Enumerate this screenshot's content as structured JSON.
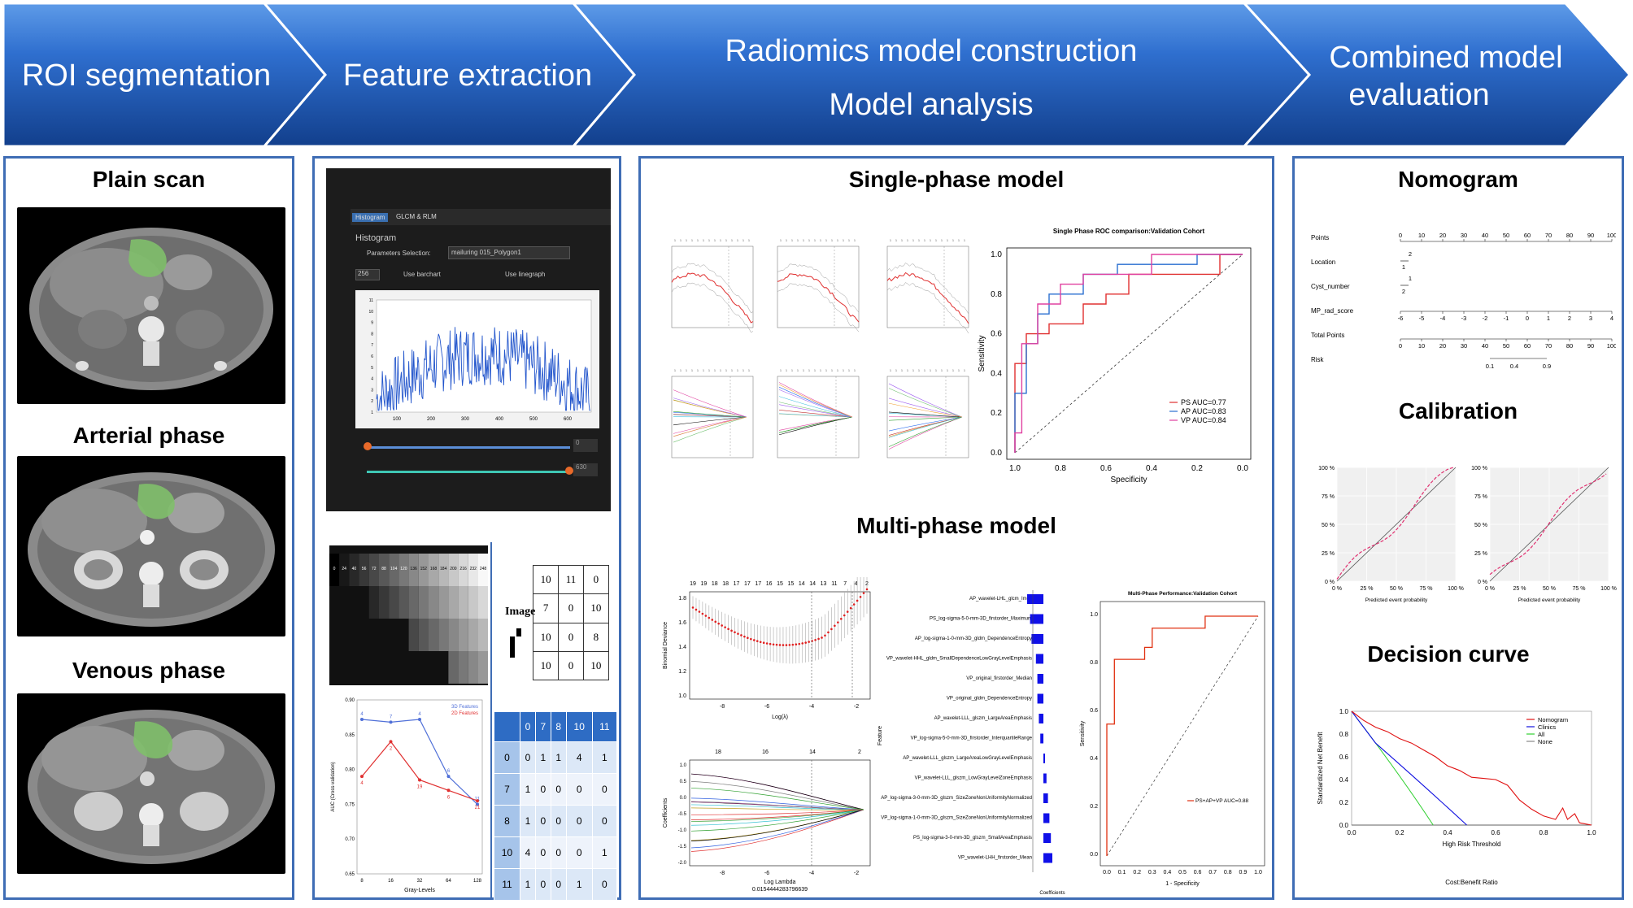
{
  "steps": [
    {
      "label": "ROI segmentation"
    },
    {
      "label": "Feature  extraction"
    },
    {
      "label_line1": "Radiomics model construction",
      "label_line2": "Model analysis"
    },
    {
      "label_line1": "Combined model",
      "label_line2": "evaluation"
    }
  ],
  "colors": {
    "banner_dark": "#1a4fa0",
    "banner_light": "#3a7ad8",
    "panel_border": "#3f6db5",
    "roi_green": "#7fbf6a"
  },
  "panel1": {
    "titles": [
      "Plain scan",
      "Arterial phase",
      "Venous phase"
    ]
  },
  "panel2": {
    "software": {
      "tab1": "Histogram",
      "tab2": "GLCM & RLM",
      "section": "Histogram",
      "param_label": "Parameters Selection:",
      "param_value": "mailuring 015_Polygon1",
      "bins": "256",
      "opt1": "Use barchart",
      "opt2": "Use linegraph",
      "yticks": [
        "11",
        "10",
        "9",
        "8",
        "7",
        "6",
        "5",
        "4",
        "3",
        "2",
        "1"
      ],
      "xticks": [
        "100",
        "200",
        "300",
        "400",
        "500",
        "600"
      ],
      "slider_end1": "0",
      "slider_end2": "630"
    },
    "gray_levels": [
      "0",
      "24",
      "40",
      "56",
      "72",
      "88",
      "104",
      "120",
      "136",
      "152",
      "168",
      "184",
      "200",
      "216",
      "232",
      "248"
    ],
    "image_label": "Image",
    "matrix": [
      [
        "10",
        "11",
        "0"
      ],
      [
        "7",
        "0",
        "10"
      ],
      [
        "10",
        "0",
        "8"
      ],
      [
        "10",
        "0",
        "10"
      ]
    ],
    "glcm_header": [
      "0",
      "7",
      "8",
      "10",
      "11"
    ],
    "glcm_rows": [
      [
        "0",
        "0",
        "1",
        "1",
        "4",
        "1"
      ],
      [
        "7",
        "1",
        "0",
        "0",
        "0",
        "0"
      ],
      [
        "8",
        "1",
        "0",
        "0",
        "0",
        "0"
      ],
      [
        "10",
        "4",
        "0",
        "0",
        "0",
        "1"
      ],
      [
        "11",
        "1",
        "0",
        "0",
        "1",
        "0"
      ]
    ],
    "linechart": {
      "legend": [
        "3D Features",
        "2D Features"
      ],
      "xlabel": "Gray-Levels",
      "ylabel": "AUC (Cross-validation)",
      "xticks": [
        "8",
        "16",
        "32",
        "64",
        "128"
      ],
      "yticks": [
        "0.90",
        "0.85",
        "0.80",
        "0.75",
        "0.70",
        "0.65"
      ],
      "labels_3d": [
        "4",
        "7",
        "4",
        "6",
        "21"
      ],
      "labels_2d": [
        "4",
        "2",
        "19",
        "6",
        "21"
      ]
    }
  },
  "panel3": {
    "title_single": "Single-phase model",
    "title_multi": "Multi-phase model",
    "roc_single": {
      "title": "Single Phase ROC comparison:Validation Cohort",
      "xlabel": "Specificity",
      "ylabel": "Sensitivity",
      "xticks": [
        "1.0",
        "0.8",
        "0.6",
        "0.4",
        "0.2",
        "0.0"
      ],
      "yticks": [
        "1.0",
        "0.8",
        "0.6",
        "0.4",
        "0.2",
        "0.0"
      ],
      "legend": [
        "PS AUC=0.77",
        "AP AUC=0.83",
        "VP AUC=0.84"
      ]
    },
    "lasso_multi": {
      "ylabel": "Binomial Deviance",
      "xlabel": "Log(λ)",
      "top_ticks": [
        "19",
        "19",
        "18",
        "18",
        "17",
        "17",
        "17",
        "16",
        "15",
        "15",
        "14",
        "14",
        "13",
        "11",
        "7",
        "4",
        "2"
      ],
      "xticks": [
        "-8",
        "-6",
        "-4",
        "-2"
      ],
      "yticks": [
        "1.8",
        "1.6",
        "1.4",
        "1.2",
        "1.0"
      ]
    },
    "coef_multi": {
      "ylabel": "Coefficients",
      "xlabel": "Log Lambda",
      "sub": "0.0154444283796639",
      "top_ticks": [
        "18",
        "16",
        "14",
        "2"
      ],
      "xticks": [
        "-8",
        "-6",
        "-4",
        "-2"
      ],
      "yticks": [
        "1.0",
        "0.5",
        "0.0",
        "-0.5",
        "-1.0",
        "-1.5",
        "-2.0"
      ]
    },
    "features": [
      "AP_wavelet-LHL_glcm_Imc1",
      "PS_log-sigma-5-0-mm-3D_firstorder_Maximum",
      "AP_log-sigma-1-0-mm-3D_gldm_DependenceEntropy",
      "VP_wavelet-HHL_gldm_SmallDependenceLowGrayLevelEmphasis",
      "VP_original_firstorder_Median",
      "VP_original_gldm_DependenceEntropy",
      "AP_wavelet-LLL_glszm_LargeAreaEmphasis",
      "VP_log-sigma-5-0-mm-3D_firstorder_InterquartileRange",
      "AP_wavelet-LLL_glszm_LargeAreaLowGrayLevelEmphasis",
      "VP_wavelet-LLL_glszm_LowGrayLevelZoneEmphasis",
      "AP_log-sigma-3-0-mm-3D_glszm_SizeZoneNonUniformityNormalized",
      "VP_log-sigma-1-0-mm-3D_glszm_SizeZoneNonUniformityNormalized",
      "PS_log-sigma-3-0-mm-3D_glszm_SmallAreaEmphasis",
      "VP_wavelet-LHH_firstorder_Mean"
    ],
    "feature_ylabel": "Feature",
    "feature_xlabel": "Coefficients",
    "feature_values": [
      -0.5,
      -0.4,
      -0.35,
      -0.2,
      -0.15,
      -0.15,
      -0.1,
      -0.05,
      0.0,
      0.05,
      0.1,
      0.15,
      0.2,
      0.25
    ],
    "roc_multi": {
      "title": "Multi-Phase Performance:Validation Cohort",
      "xlabel": "1 - Specificity",
      "ylabel": "Sensitivity",
      "xticks": [
        "0.0",
        "0.1",
        "0.2",
        "0.3",
        "0.4",
        "0.5",
        "0.6",
        "0.7",
        "0.8",
        "0.9",
        "1.0"
      ],
      "yticks": [
        "1.0",
        "0.8",
        "0.6",
        "0.4",
        "0.2",
        "0.0"
      ],
      "legend": "PS+AP+VP AUC=0.88"
    }
  },
  "panel4": {
    "title_nomogram": "Nomogram",
    "title_calibration": "Calibration",
    "title_decision": "Decision curve",
    "nomogram": {
      "rows": [
        "Points",
        "Location",
        "Cyst_number",
        "MP_rad_score",
        "Total Points",
        "Risk"
      ],
      "points_ticks": [
        "0",
        "10",
        "20",
        "30",
        "40",
        "50",
        "60",
        "70",
        "80",
        "90",
        "100"
      ],
      "score_ticks": [
        "-6",
        "-5",
        "-4",
        "-3",
        "-2",
        "-1",
        "0",
        "1",
        "2",
        "3",
        "4"
      ],
      "total_ticks": [
        "0",
        "10",
        "20",
        "30",
        "40",
        "50",
        "60",
        "70",
        "80",
        "90",
        "100"
      ],
      "risk_ticks": [
        "0.1",
        "0.4",
        "0.9"
      ],
      "loc_ticks": [
        "2",
        "1"
      ],
      "cyst_ticks": [
        "1",
        "2"
      ]
    },
    "calibration": {
      "xlabel": "Predicted event probability",
      "yticks": [
        "100 %",
        "75 %",
        "50 %",
        "25 %",
        "0 %"
      ],
      "xticks": [
        "0 %",
        "25 %",
        "50 %",
        "75 %",
        "100 %"
      ]
    },
    "decision": {
      "ylabel": "Standardized Net Benefit",
      "xlabel": "High Risk Threshold",
      "sublabel": "Cost:Benefit Ratio",
      "xticks": [
        "0.0",
        "0.2",
        "0.4",
        "0.6",
        "0.8",
        "1.0"
      ],
      "yticks": [
        "1.0",
        "0.8",
        "0.6",
        "0.4",
        "0.2",
        "0.0"
      ],
      "legend": [
        "Nomogram",
        "Clinics",
        "All",
        "None"
      ]
    }
  }
}
